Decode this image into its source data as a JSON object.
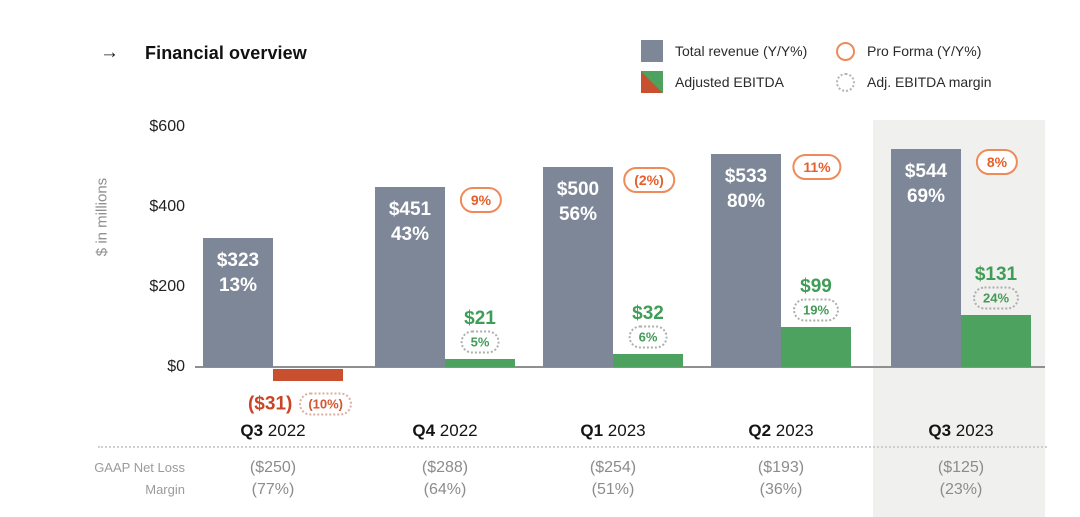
{
  "header": {
    "arrow": "→",
    "title": "Financial overview"
  },
  "legend": {
    "total_revenue": "Total revenue (Y/Y%)",
    "pro_forma": "Pro Forma (Y/Y%)",
    "adjusted_ebitda": "Adjusted EBITDA",
    "ebitda_margin": "Adj. EBITDA margin"
  },
  "chart_data": {
    "type": "bar",
    "title": "Financial overview",
    "ylabel": "$ in millions",
    "ylim": [
      0,
      600
    ],
    "grid": false,
    "legend_position": "top-right",
    "yticks": [
      {
        "value": 0,
        "label": "$0"
      },
      {
        "value": 200,
        "label": "$200"
      },
      {
        "value": 400,
        "label": "$400"
      },
      {
        "value": 600,
        "label": "$600"
      }
    ],
    "categories": [
      "Q3 2022",
      "Q4 2022",
      "Q1 2023",
      "Q2 2023",
      "Q3 2023"
    ],
    "series": [
      {
        "name": "Total revenue ($M)",
        "values": [
          323,
          451,
          500,
          533,
          544
        ]
      },
      {
        "name": "Total revenue Y/Y %",
        "values": [
          "13%",
          "43%",
          "56%",
          "80%",
          "69%"
        ]
      },
      {
        "name": "Pro Forma Y/Y %",
        "values": [
          null,
          "9%",
          "(2%)",
          "11%",
          "8%"
        ]
      },
      {
        "name": "Adjusted EBITDA ($M)",
        "values": [
          -31,
          21,
          32,
          99,
          131
        ]
      },
      {
        "name": "Adj. EBITDA margin %",
        "values": [
          "(10%)",
          "5%",
          "6%",
          "19%",
          "24%"
        ]
      }
    ],
    "quarters": [
      {
        "quarter": "Q3",
        "year": "2022",
        "revenue": 323,
        "revenue_label": "$323",
        "revenue_yoy": "13%",
        "pro_forma": null,
        "ebitda": -31,
        "ebitda_label": "($31)",
        "ebitda_margin": "(10%)",
        "highlighted": false
      },
      {
        "quarter": "Q4",
        "year": "2022",
        "revenue": 451,
        "revenue_label": "$451",
        "revenue_yoy": "43%",
        "pro_forma": "9%",
        "ebitda": 21,
        "ebitda_label": "$21",
        "ebitda_margin": "5%",
        "highlighted": false
      },
      {
        "quarter": "Q1",
        "year": "2023",
        "revenue": 500,
        "revenue_label": "$500",
        "revenue_yoy": "56%",
        "pro_forma": "(2%)",
        "ebitda": 32,
        "ebitda_label": "$32",
        "ebitda_margin": "6%",
        "highlighted": false
      },
      {
        "quarter": "Q2",
        "year": "2023",
        "revenue": 533,
        "revenue_label": "$533",
        "revenue_yoy": "80%",
        "pro_forma": "11%",
        "ebitda": 99,
        "ebitda_label": "$99",
        "ebitda_margin": "19%",
        "highlighted": false
      },
      {
        "quarter": "Q3",
        "year": "2023",
        "revenue": 544,
        "revenue_label": "$544",
        "revenue_yoy": "69%",
        "pro_forma": "8%",
        "ebitda": 131,
        "ebitda_label": "$131",
        "ebitda_margin": "24%",
        "highlighted": true
      }
    ]
  },
  "table": {
    "rows": [
      {
        "label": "GAAP Net Loss",
        "values": [
          "($250)",
          "($288)",
          "($254)",
          "($193)",
          "($125)"
        ]
      },
      {
        "label": "Margin",
        "values": [
          "(77%)",
          "(64%)",
          "(51%)",
          "(36%)",
          "(23%)"
        ]
      }
    ]
  },
  "colors": {
    "revenue_bar": "#7e8798",
    "ebitda_positive": "#4ea25f",
    "ebitda_negative": "#c8502f",
    "pro_forma_accent": "#e45f2b",
    "margin_badge_text": "#449a58",
    "negative_label_text": "#cc4426",
    "highlight_panel": "#f0f0ee",
    "axis_text": "#222222",
    "muted_text": "#8c8c8c"
  }
}
